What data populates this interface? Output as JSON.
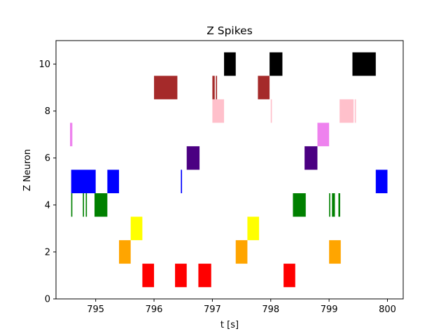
{
  "chart_data": {
    "type": "scatter",
    "title": "Z Spikes",
    "xlabel": "t [s]",
    "ylabel": "Z Neuron",
    "xlim": [
      794.32,
      800.27
    ],
    "ylim": [
      0,
      11
    ],
    "grid": false,
    "xticks": [
      795,
      796,
      797,
      798,
      799,
      800
    ],
    "yticks": [
      0,
      2,
      4,
      6,
      8,
      10
    ],
    "series": [
      {
        "neuron": 1,
        "color": "#ff0000",
        "spans": [
          [
            795.8,
            796.0
          ],
          [
            796.36,
            796.56
          ],
          [
            796.76,
            796.98
          ],
          [
            798.22,
            798.42
          ]
        ]
      },
      {
        "neuron": 2,
        "color": "#ffa500",
        "spans": [
          [
            795.4,
            795.6
          ],
          [
            797.4,
            797.6
          ],
          [
            799.0,
            799.2
          ]
        ]
      },
      {
        "neuron": 3,
        "color": "#ffff00",
        "spans": [
          [
            795.6,
            795.8
          ],
          [
            797.6,
            797.8
          ]
        ]
      },
      {
        "neuron": 4,
        "color": "#008000",
        "spans": [
          [
            794.58,
            794.6
          ],
          [
            794.78,
            794.8
          ],
          [
            794.83,
            794.85
          ],
          [
            794.98,
            795.2
          ],
          [
            798.38,
            798.6
          ],
          [
            799.0,
            799.02
          ],
          [
            799.05,
            799.1
          ],
          [
            799.16,
            799.19
          ]
        ]
      },
      {
        "neuron": 5,
        "color": "#0000ff",
        "spans": [
          [
            794.58,
            795.0
          ],
          [
            795.2,
            795.4
          ],
          [
            796.46,
            796.48
          ],
          [
            799.8,
            800.0
          ]
        ]
      },
      {
        "neuron": 6,
        "color": "#4b0082",
        "spans": [
          [
            796.56,
            796.78
          ],
          [
            798.58,
            798.8
          ]
        ]
      },
      {
        "neuron": 7,
        "color": "#ee82ee",
        "spans": [
          [
            794.56,
            794.6
          ],
          [
            798.8,
            799.0
          ]
        ]
      },
      {
        "neuron": 8,
        "color": "#ffc0cb",
        "spans": [
          [
            797.0,
            797.2
          ],
          [
            798.0,
            798.02
          ],
          [
            799.18,
            799.42
          ],
          [
            799.44,
            799.46
          ]
        ]
      },
      {
        "neuron": 9,
        "color": "#a52a2a",
        "spans": [
          [
            796.0,
            796.4
          ],
          [
            797.0,
            797.04
          ],
          [
            797.06,
            797.08
          ],
          [
            797.78,
            797.98
          ]
        ]
      },
      {
        "neuron": 10,
        "color": "#000000",
        "spans": [
          [
            797.2,
            797.4
          ],
          [
            797.98,
            798.2
          ],
          [
            799.4,
            799.8
          ]
        ]
      }
    ]
  }
}
